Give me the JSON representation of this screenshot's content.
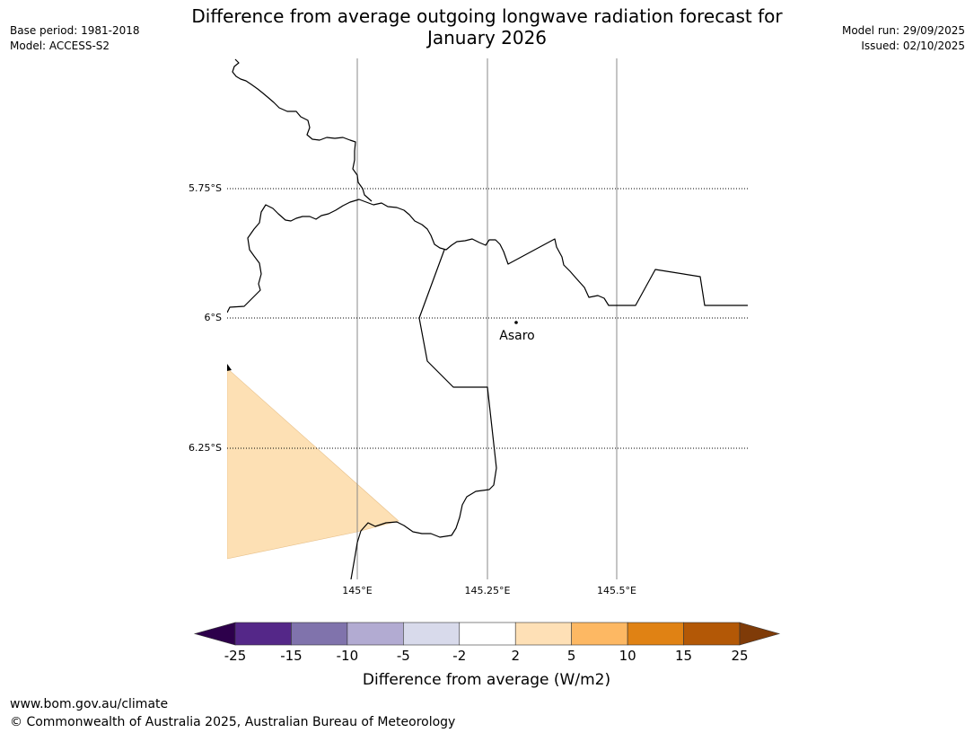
{
  "header": {
    "base_period": "Base period: 1981-2018",
    "model": "Model: ACCESS-S2",
    "title_line1": "Difference from average outgoing longwave radiation forecast for",
    "title_line2": "January 2026",
    "model_run": "Model run: 29/09/2025",
    "issued": "Issued: 02/10/2025"
  },
  "map": {
    "latitude_labels": [
      "5.75°S",
      "6°S",
      "6.25°S"
    ],
    "longitude_labels": [
      "145°E",
      "145.25°E",
      "145.5°E"
    ],
    "place_label": "Asaro",
    "anomaly_fill_color": "#fde0b4",
    "coastline_color": "#000000"
  },
  "legend": {
    "tick_labels": [
      "-25",
      "-15",
      "-10",
      "-5",
      "-2",
      "2",
      "5",
      "10",
      "15",
      "25"
    ],
    "colors": [
      "#2d004b",
      "#542788",
      "#8073ac",
      "#b2abd2",
      "#d8daeb",
      "#ffffff",
      "#fee0b6",
      "#fdb863",
      "#e08214",
      "#b35806",
      "#7f3b08"
    ],
    "axis_label": "Difference from average (W/m2)"
  },
  "footer": {
    "url": "www.bom.gov.au/climate",
    "copyright": "© Commonwealth of Australia 2025, Australian Bureau of Meteorology"
  }
}
